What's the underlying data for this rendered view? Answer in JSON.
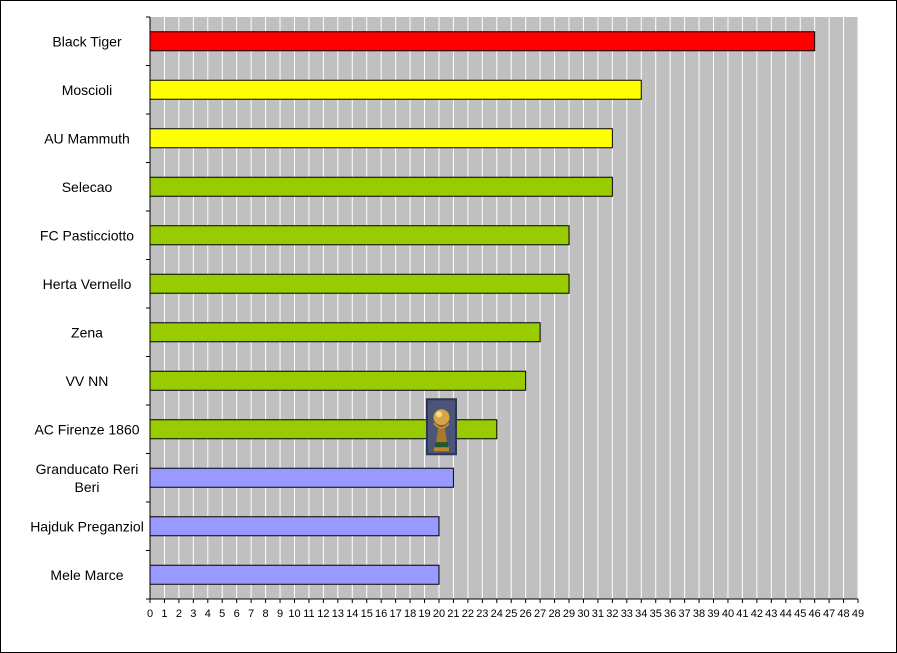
{
  "chart_data": {
    "type": "bar",
    "orientation": "horizontal",
    "categories": [
      "Black Tiger",
      "Moscioli",
      "AU Mammuth",
      "Selecao",
      "FC Pasticciotto",
      "Herta Vernello",
      "Zena",
      "VV NN",
      "AC Firenze 1860",
      "Granducato Reri Beri",
      "Hajduk Preganziol",
      "Mele Marce"
    ],
    "category_lines": [
      [
        "Black Tiger"
      ],
      [
        "Moscioli"
      ],
      [
        "AU Mammuth"
      ],
      [
        "Selecao"
      ],
      [
        "FC Pasticciotto"
      ],
      [
        "Herta Vernello"
      ],
      [
        "Zena"
      ],
      [
        "VV NN"
      ],
      [
        "AC Firenze 1860"
      ],
      [
        "Granducato Reri",
        "Beri"
      ],
      [
        "Hajduk Preganziol"
      ],
      [
        "Mele Marce"
      ]
    ],
    "values": [
      46,
      34,
      32,
      32,
      29,
      29,
      27,
      26,
      24,
      21,
      20,
      20
    ],
    "bar_colors": [
      "#ff0000",
      "#ffff00",
      "#ffff00",
      "#99cc00",
      "#99cc00",
      "#99cc00",
      "#99cc00",
      "#99cc00",
      "#99cc00",
      "#9999ff",
      "#9999ff",
      "#9999ff"
    ],
    "xlim": [
      0,
      49
    ],
    "xticks": [
      "0",
      "1",
      "2",
      "3",
      "4",
      "5",
      "6",
      "7",
      "8",
      "9",
      "10",
      "11",
      "12",
      "13",
      "14",
      "15",
      "16",
      "17",
      "18",
      "19",
      "20",
      "21",
      "22",
      "23",
      "24",
      "25",
      "26",
      "27",
      "28",
      "29",
      "30",
      "31",
      "32",
      "33",
      "34",
      "35",
      "36",
      "37",
      "38",
      "39",
      "40",
      "41",
      "42",
      "43",
      "44",
      "45",
      "46",
      "47",
      "48",
      "49"
    ],
    "grid": "vertical",
    "plot_background": "#c0c0c0",
    "gridline_color": "#ffffff",
    "legend": "none",
    "annotations": [
      {
        "type": "icon",
        "icon": "world-cup-trophy-icon",
        "category": "AC Firenze 1860"
      }
    ],
    "title": "",
    "xlabel": "",
    "ylabel": ""
  }
}
